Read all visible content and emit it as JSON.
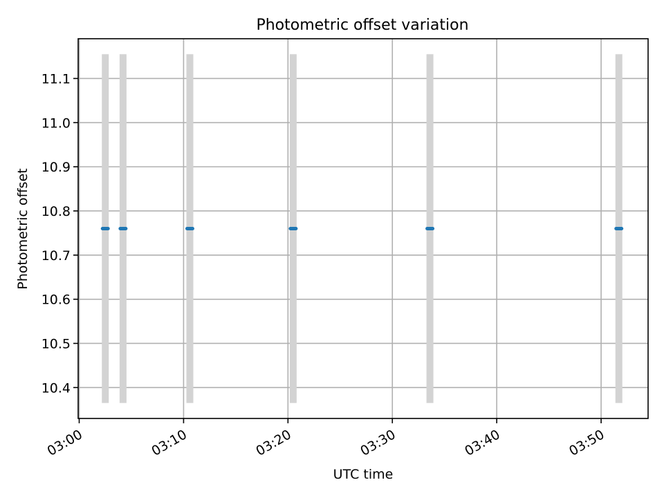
{
  "chart_data": {
    "type": "scatter",
    "title": "Photometric offset variation",
    "xlabel": "UTC time",
    "ylabel": "Photometric offset",
    "x_ticks": [
      "03:00",
      "03:10",
      "03:20",
      "03:30",
      "03:40",
      "03:50"
    ],
    "y_ticks": [
      "10.4",
      "10.5",
      "10.6",
      "10.7",
      "10.8",
      "10.9",
      "11.0",
      "11.1"
    ],
    "xlim_minutes_after_0300": [
      -0.1,
      54.5
    ],
    "ylim": [
      10.33,
      11.19
    ],
    "grid": true,
    "points": [
      {
        "x": "03:02:30",
        "y": 10.76
      },
      {
        "x": "03:04:12",
        "y": 10.76
      },
      {
        "x": "03:10:36",
        "y": 10.76
      },
      {
        "x": "03:20:30",
        "y": 10.76
      },
      {
        "x": "03:33:36",
        "y": 10.76
      },
      {
        "x": "03:51:42",
        "y": 10.76
      }
    ],
    "exposure_bands": [
      {
        "x": "03:02:30",
        "y_range": [
          10.365,
          11.155
        ]
      },
      {
        "x": "03:04:12",
        "y_range": [
          10.365,
          11.155
        ]
      },
      {
        "x": "03:10:36",
        "y_range": [
          10.365,
          11.155
        ]
      },
      {
        "x": "03:20:30",
        "y_range": [
          10.365,
          11.155
        ]
      },
      {
        "x": "03:33:36",
        "y_range": [
          10.365,
          11.155
        ]
      },
      {
        "x": "03:51:42",
        "y_range": [
          10.365,
          11.155
        ]
      }
    ],
    "colors": {
      "points": "#1f77b4",
      "bands": "#d3d3d3",
      "grid": "#b0b0b0"
    }
  }
}
